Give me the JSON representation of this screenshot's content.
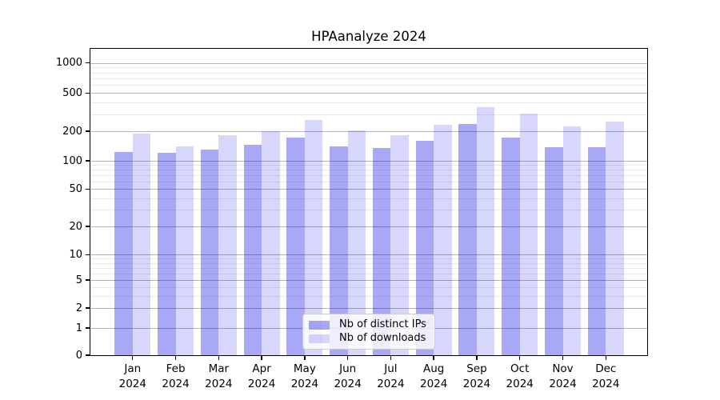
{
  "chart_data": {
    "type": "bar",
    "title": "HPAanalyze 2024",
    "year_label": "2024",
    "months": [
      "Jan",
      "Feb",
      "Mar",
      "Apr",
      "May",
      "Jun",
      "Jul",
      "Aug",
      "Sep",
      "Oct",
      "Nov",
      "Dec"
    ],
    "y_ticks": [
      0,
      1,
      2,
      5,
      10,
      20,
      50,
      100,
      200,
      500,
      1000
    ],
    "y_minor_gridlines": [
      3,
      4,
      6,
      7,
      8,
      9,
      30,
      40,
      60,
      70,
      80,
      90,
      300,
      400,
      600,
      700,
      800,
      900
    ],
    "y_scale": "symlog",
    "ylim": [
      0,
      1400
    ],
    "grid": {
      "horizontal_major": true,
      "horizontal_minor": true,
      "vertical": false
    },
    "legend_position": "inside-bottom-center",
    "series": [
      {
        "name": "Nb of distinct IPs",
        "fill": "rgba(0,0,230,0.34)",
        "values": [
          122,
          120,
          131,
          145,
          173,
          141,
          135,
          159,
          236,
          172,
          137,
          137
        ]
      },
      {
        "name": "Nb of downloads",
        "fill": "rgba(0,0,230,0.155)",
        "values": [
          189,
          139,
          182,
          199,
          261,
          202,
          181,
          235,
          356,
          306,
          224,
          250
        ]
      }
    ],
    "colors": {
      "grid_major": "#b4b4b4",
      "grid_minor": "#eaeaea",
      "axis": "#000000",
      "background": "#ffffff"
    }
  }
}
